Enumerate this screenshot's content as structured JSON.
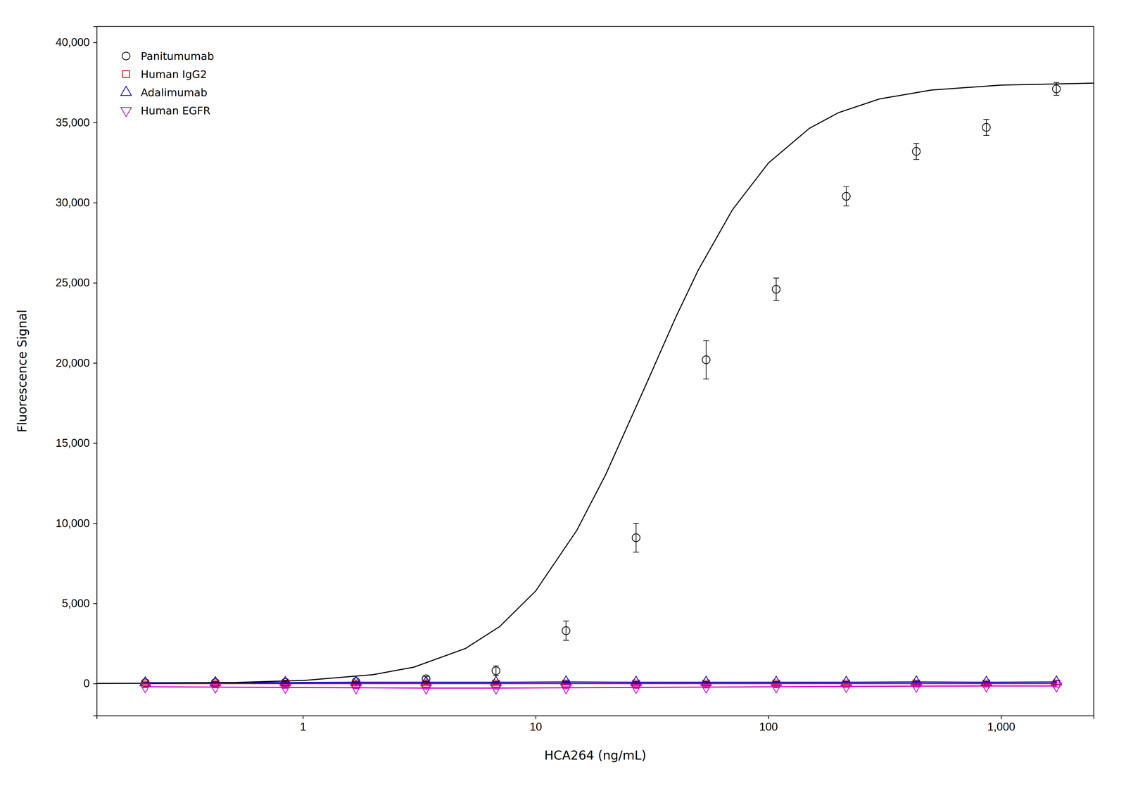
{
  "chart_data": {
    "type": "scatter",
    "xlabel": "HCA264 (ng/mL)",
    "ylabel": "Fluorescence Signal",
    "log": "x",
    "grid": false,
    "legend": "upper left",
    "xlim": [
      0.13,
      2500
    ],
    "ylim": [
      -2000,
      41000
    ],
    "xticks": [
      1,
      10,
      100,
      {
        "value": 1000,
        "label": "1,000"
      }
    ],
    "yticks": [
      0,
      {
        "value": 5000,
        "label": "5,000"
      },
      {
        "value": 10000,
        "label": "10,000"
      },
      {
        "value": 15000,
        "label": "15,000"
      },
      {
        "value": 20000,
        "label": "20,000"
      },
      {
        "value": 25000,
        "label": "25,000"
      },
      {
        "value": 30000,
        "label": "30,000"
      },
      {
        "value": 35000,
        "label": "35,000"
      },
      {
        "value": 40000,
        "label": "40,000"
      }
    ],
    "x": [
      0.21,
      0.42,
      0.84,
      1.69,
      3.38,
      6.75,
      13.5,
      27.0,
      54.0,
      108.0,
      216.0,
      432.0,
      864.0,
      1728.0
    ],
    "series": [
      {
        "name": "Panitumumab",
        "type": "scatter",
        "marker": "circle",
        "color": "#000000",
        "values": [
          50,
          60,
          80,
          120,
          300,
          800,
          3300,
          9100,
          20200,
          24600,
          30400,
          33200,
          34700,
          37100
        ],
        "errors": [
          60,
          70,
          80,
          100,
          150,
          300,
          600,
          900,
          1200,
          700,
          600,
          500,
          500,
          400
        ]
      },
      {
        "name": "Human IgG2",
        "type": "line",
        "marker": "square",
        "color": "#cc0000",
        "values": [
          0,
          0,
          0,
          0,
          0,
          0,
          0,
          0,
          0,
          0,
          0,
          0,
          0,
          0
        ],
        "errors": [
          50,
          50,
          50,
          50,
          50,
          50,
          50,
          50,
          50,
          50,
          50,
          50,
          50,
          50
        ]
      },
      {
        "name": "Adalimumab",
        "type": "line",
        "marker": "triangle-up",
        "color": "#0000cc",
        "values": [
          50,
          60,
          60,
          80,
          80,
          80,
          100,
          80,
          80,
          80,
          80,
          100,
          80,
          100
        ],
        "errors": [
          50,
          50,
          50,
          50,
          60,
          60,
          60,
          60,
          60,
          60,
          60,
          60,
          60,
          60
        ]
      },
      {
        "name": "Human EGFR",
        "type": "line",
        "marker": "triangle-down",
        "color": "#cc00cc",
        "values": [
          -200,
          -220,
          -240,
          -260,
          -280,
          -280,
          -260,
          -240,
          -220,
          -200,
          -180,
          -160,
          -150,
          -150
        ],
        "errors": [
          50,
          50,
          60,
          60,
          70,
          70,
          70,
          60,
          60,
          60,
          60,
          60,
          60,
          60
        ]
      },
      {
        "type": "line",
        "color": "#000000",
        "x": [
          0.13,
          0.2,
          0.5,
          1,
          2,
          3,
          5,
          7,
          10,
          15,
          20,
          30,
          40,
          50,
          70,
          100,
          150,
          200,
          300,
          500,
          1000,
          2500
        ],
        "values": [
          8.1,
          15.9,
          65.6,
          191.5,
          555.4,
          1028.0,
          2196.2,
          3557.2,
          5778.5,
          9546.4,
          13044.6,
          18750,
          22862.4,
          25808.3,
          29552.6,
          32475.4,
          34641.1,
          35618.0,
          36472.0,
          37027.2,
          37337.2,
          37460.5
        ]
      }
    ]
  }
}
